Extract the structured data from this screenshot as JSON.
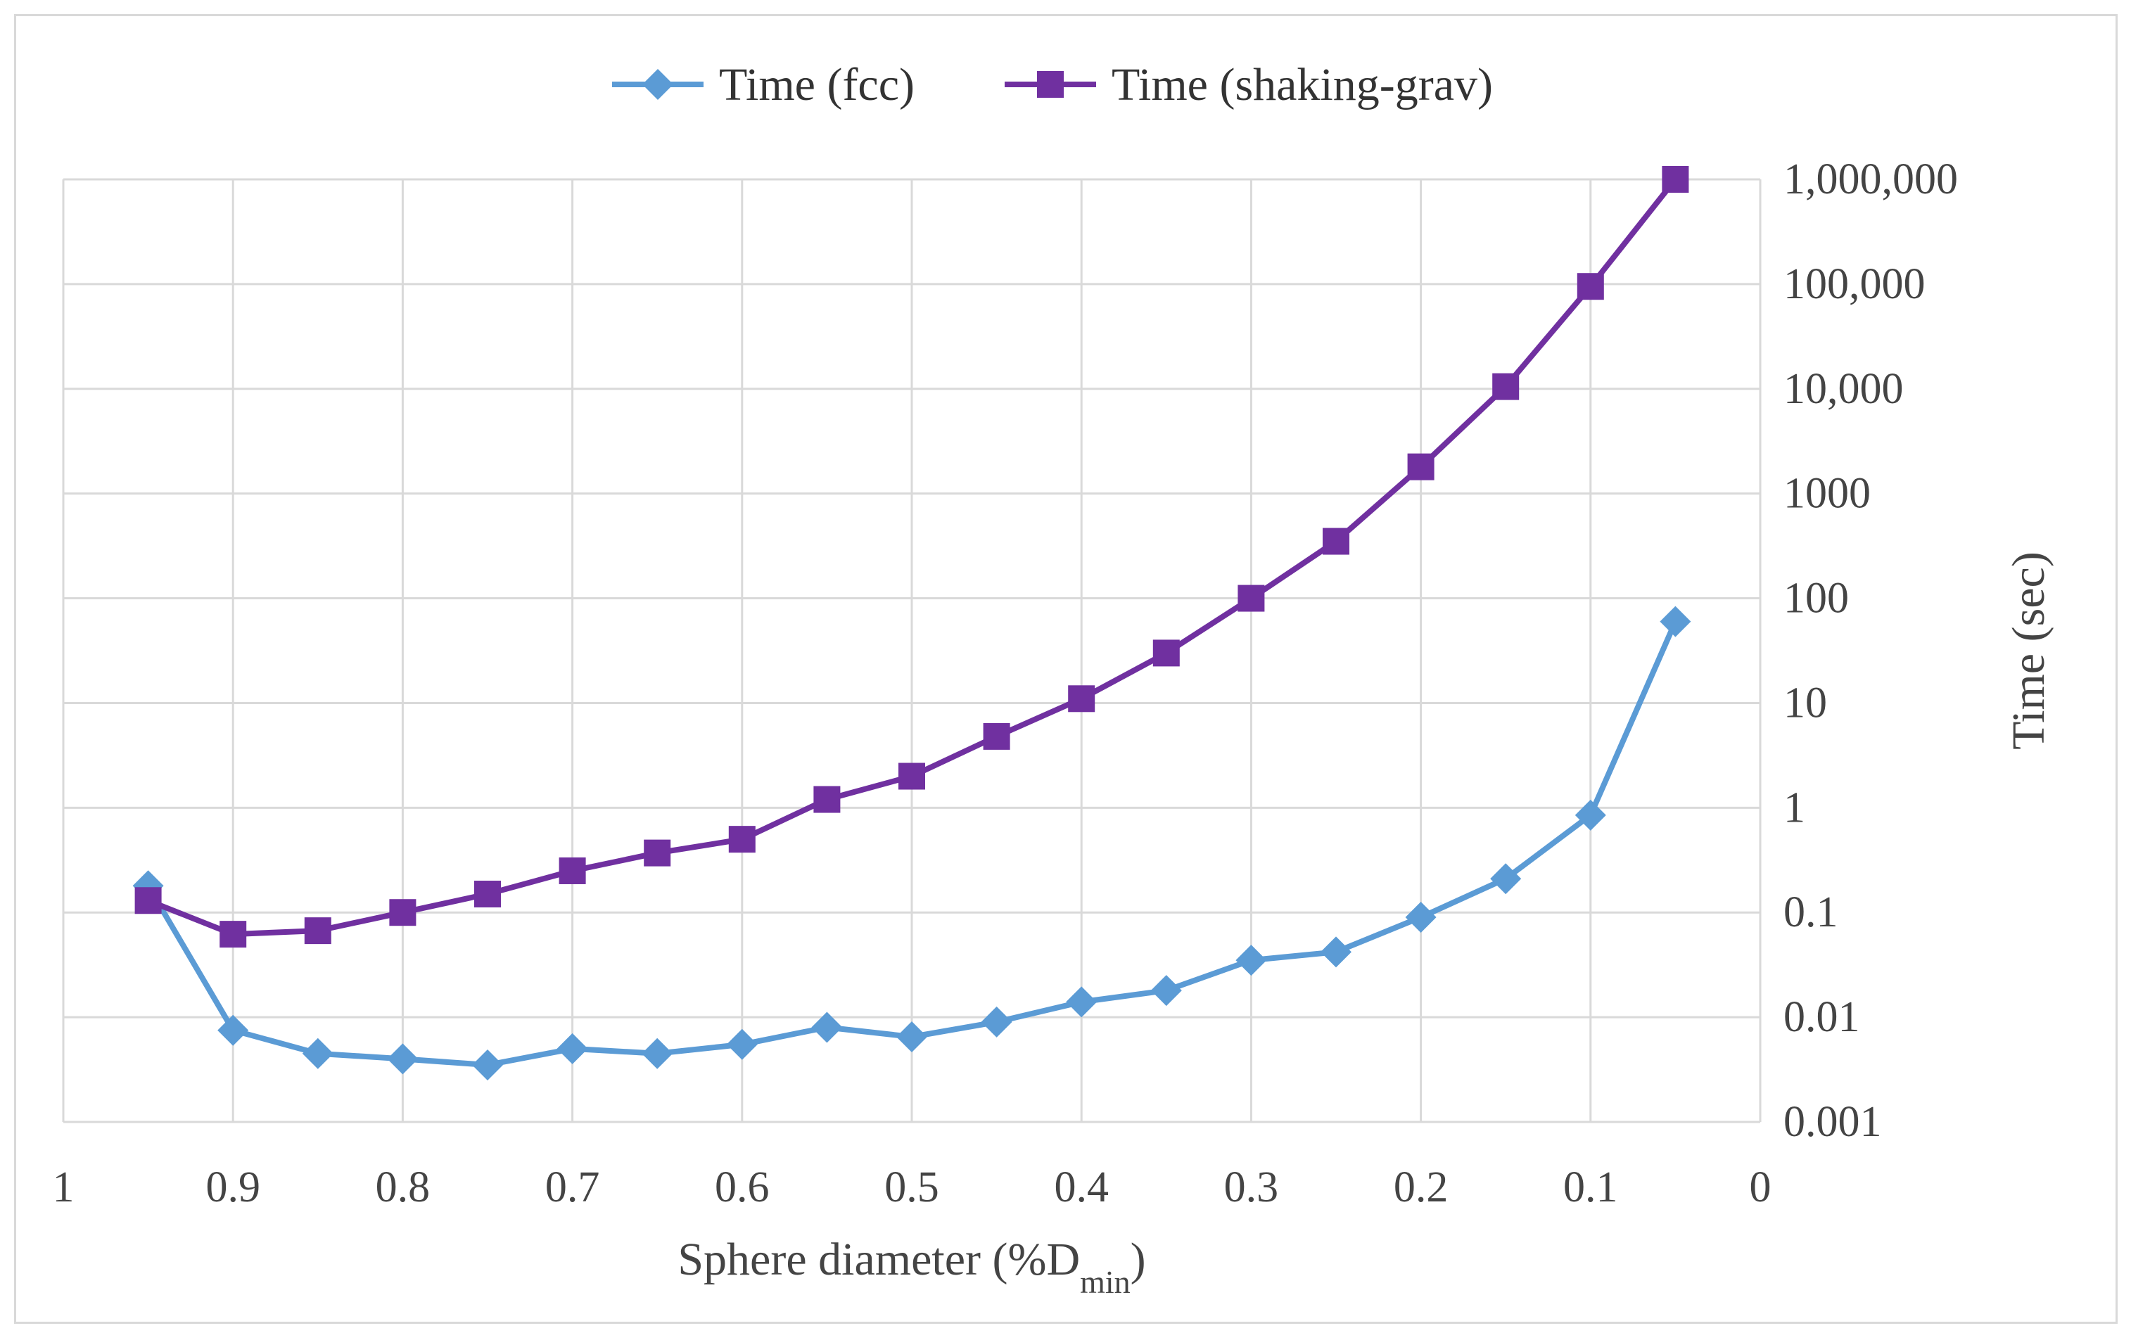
{
  "chart_data": {
    "type": "line",
    "title": "",
    "x_reversed": true,
    "xlim": [
      0,
      1
    ],
    "x_ticks": [
      1,
      0.9,
      0.8,
      0.7,
      0.6,
      0.5,
      0.4,
      0.3,
      0.2,
      0.1,
      0
    ],
    "x_tick_labels": [
      "1",
      "0.9",
      "0.8",
      "0.7",
      "0.6",
      "0.5",
      "0.4",
      "0.3",
      "0.2",
      "0.1",
      "0"
    ],
    "xlabel": {
      "main": "Sphere diameter (%D",
      "sub": "min",
      "suffix": ")"
    },
    "ylabel": "Time (sec)",
    "yscale": "log",
    "ylim": [
      0.001,
      1000000
    ],
    "y_ticks": [
      0.001,
      0.01,
      0.1,
      1,
      10,
      100,
      1000,
      10000,
      100000,
      1000000
    ],
    "y_tick_labels": [
      "0.001",
      "0.01",
      "0.1",
      "1",
      "10",
      "100",
      "1000",
      "10,000",
      "100,000",
      "1,000,000"
    ],
    "grid": true,
    "legend_position": "top",
    "x": [
      0.95,
      0.9,
      0.85,
      0.8,
      0.75,
      0.7,
      0.65,
      0.6,
      0.55,
      0.5,
      0.45,
      0.4,
      0.35,
      0.3,
      0.25,
      0.2,
      0.15,
      0.1,
      0.05
    ],
    "series": [
      {
        "name": "Time (fcc)",
        "color": "#5b9bd5",
        "marker": "diamond",
        "values": [
          0.18,
          0.0075,
          0.0045,
          0.004,
          0.0035,
          0.005,
          0.0045,
          0.0055,
          0.008,
          0.0065,
          0.009,
          0.014,
          0.018,
          0.035,
          0.042,
          0.09,
          0.21,
          0.85,
          60
        ]
      },
      {
        "name": "Time (shaking-grav)",
        "color": "#7030a0",
        "marker": "square",
        "values": [
          0.13,
          0.062,
          0.067,
          0.1,
          0.15,
          0.25,
          0.37,
          0.5,
          1.2,
          2.0,
          4.8,
          11,
          30,
          100,
          350,
          1800,
          10500,
          95000,
          1000000
        ]
      }
    ]
  }
}
